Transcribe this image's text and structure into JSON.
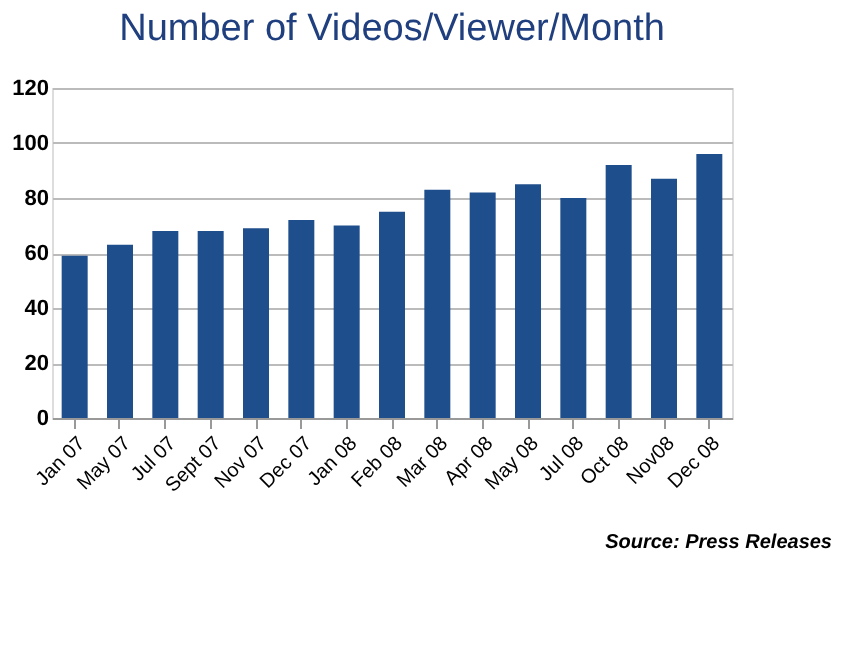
{
  "chart_data": {
    "type": "bar",
    "title": "Number of Videos/Viewer/Month",
    "categories": [
      "Jan 07",
      "May 07",
      "Jul 07",
      "Sept 07",
      "Nov 07",
      "Dec 07",
      "Jan 08",
      "Feb 08",
      "Mar 08",
      "Apr 08",
      "May 08",
      "Jul 08",
      "Oct 08",
      "Nov08",
      "Dec 08"
    ],
    "values": [
      59,
      63,
      68,
      68,
      69,
      72,
      70,
      75,
      83,
      82,
      85,
      80,
      92,
      87,
      96
    ],
    "color": "#1f4e8c",
    "ylim": [
      0,
      120
    ],
    "yticks": [
      0,
      20,
      40,
      60,
      80,
      100,
      120
    ],
    "grid": "y",
    "annotations": [
      "Source: Press Releases"
    ]
  }
}
